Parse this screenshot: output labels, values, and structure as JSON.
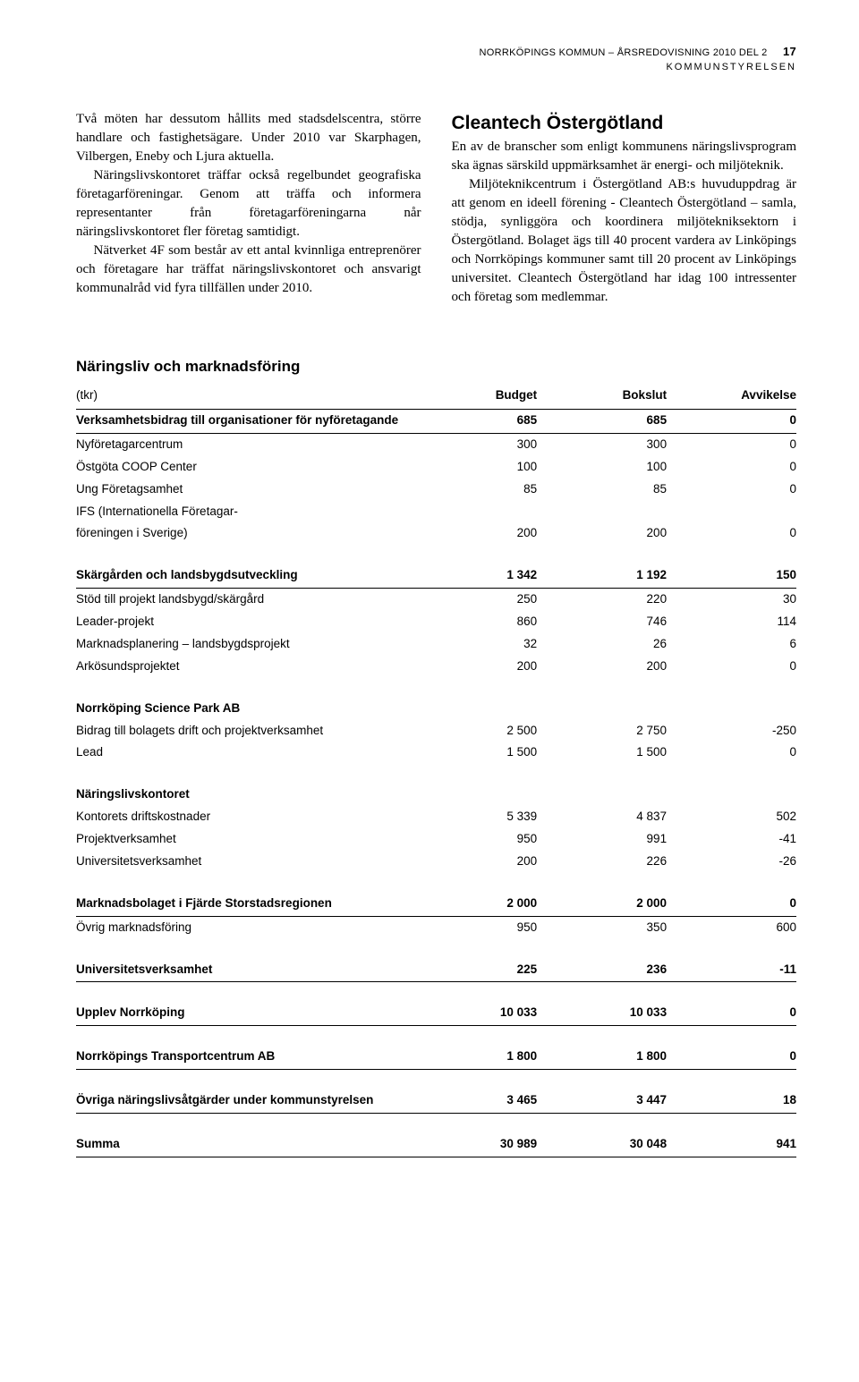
{
  "header": {
    "line1": "NORRKÖPINGS KOMMUN – ÅRSREDOVISNING 2010 DEL 2",
    "pagenum": "17",
    "line2": "KOMMUNSTYRELSEN"
  },
  "leftCol": {
    "p1": "Två möten har dessutom hållits med stadsdelscentra, större handlare och fastighetsägare. Under 2010 var Skarphagen, Vilbergen, Eneby och Ljura aktuella.",
    "p2": "Näringslivskontoret träffar också regelbundet geografiska företagarföreningar. Genom att träffa och informera representanter från företagarföreningarna når näringslivskontoret fler företag samtidigt.",
    "p3": "Nätverket 4F som består av ett antal kvinnliga entreprenörer och företagare har träffat näringslivskontoret och ansvarigt kommunalråd vid fyra tillfällen under 2010."
  },
  "rightCol": {
    "h": "Cleantech Östergötland",
    "p1": "En av de branscher som enligt kommunens näringslivsprogram ska ägnas särskild uppmärksamhet är energi- och miljöteknik.",
    "p2": "Miljöteknikcentrum i Östergötland AB:s huvuduppdrag är att genom en ideell förening - Cleantech Östergötland – samla, stödja, synliggöra och koordinera miljötekniksektorn i Östergötland. Bolaget ägs till 40 procent vardera av Linköpings och Norrköpings kommuner samt till 20 procent av Linköpings universitet. Cleantech Östergötland har idag 100 intressenter och företag som medlemmar."
  },
  "tableTitle": "Näringsliv och marknadsföring",
  "table": {
    "head": {
      "c0": "(tkr)",
      "c1": "Budget",
      "c2": "Bokslut",
      "c3": "Avvikelse"
    },
    "rows": [
      {
        "type": "group",
        "underline": true,
        "label": "Verksamhetsbidrag till organisationer för nyföretagande",
        "v": [
          "685",
          "685",
          "0"
        ]
      },
      {
        "type": "item",
        "label": "Nyföretagarcentrum",
        "v": [
          "300",
          "300",
          "0"
        ]
      },
      {
        "type": "item",
        "label": "Östgöta COOP Center",
        "v": [
          "100",
          "100",
          "0"
        ]
      },
      {
        "type": "item",
        "label": "Ung Företagsamhet",
        "v": [
          "85",
          "85",
          "0"
        ]
      },
      {
        "type": "itemlbl",
        "label": "IFS (Internationella Företagar-"
      },
      {
        "type": "item",
        "label": "föreningen i Sverige)",
        "v": [
          "200",
          "200",
          "0"
        ]
      },
      {
        "type": "group",
        "spaced": true,
        "underline": true,
        "label": "Skärgården och landsbygdsutveckling",
        "v": [
          "1 342",
          "1 192",
          "150"
        ]
      },
      {
        "type": "item",
        "label": "Stöd till projekt landsbygd/skärgård",
        "v": [
          "250",
          "220",
          "30"
        ]
      },
      {
        "type": "item",
        "label": "Leader-projekt",
        "v": [
          "860",
          "746",
          "114"
        ]
      },
      {
        "type": "item",
        "label": "Marknadsplanering – landsbygdsprojekt",
        "v": [
          "32",
          "26",
          "6"
        ]
      },
      {
        "type": "item",
        "label": "Arkösundsprojektet",
        "v": [
          "200",
          "200",
          "0"
        ]
      },
      {
        "type": "grouplbl",
        "spaced": true,
        "label": "Norrköping Science Park AB"
      },
      {
        "type": "item",
        "label": "Bidrag till bolagets drift och projektverksamhet",
        "v": [
          "2 500",
          "2 750",
          "-250"
        ]
      },
      {
        "type": "item",
        "label": "Lead",
        "v": [
          "1 500",
          "1 500",
          "0"
        ]
      },
      {
        "type": "grouplbl",
        "spaced": true,
        "label": "Näringslivskontoret"
      },
      {
        "type": "item",
        "label": "Kontorets driftskostnader",
        "v": [
          "5 339",
          "4 837",
          "502"
        ]
      },
      {
        "type": "item",
        "label": "Projektverksamhet",
        "v": [
          "950",
          "991",
          "-41"
        ]
      },
      {
        "type": "item",
        "label": "Universitetsverksamhet",
        "v": [
          "200",
          "226",
          "-26"
        ]
      },
      {
        "type": "group",
        "spaced": true,
        "underline": true,
        "label": "Marknadsbolaget i Fjärde Storstadsregionen",
        "v": [
          "2 000",
          "2 000",
          "0"
        ]
      },
      {
        "type": "item",
        "label": "Övrig marknadsföring",
        "v": [
          "950",
          "350",
          "600"
        ]
      },
      {
        "type": "group",
        "spaced": true,
        "underline": true,
        "label": "Universitetsverksamhet",
        "v": [
          "225",
          "236",
          "-11"
        ]
      },
      {
        "type": "group",
        "spaced": true,
        "underline": true,
        "label": "Upplev Norrköping",
        "v": [
          "10 033",
          "10 033",
          "0"
        ]
      },
      {
        "type": "group",
        "spaced": true,
        "underline": true,
        "label": "Norrköpings Transportcentrum AB",
        "v": [
          "1 800",
          "1 800",
          "0"
        ]
      },
      {
        "type": "group",
        "spaced": true,
        "underline": true,
        "label": "Övriga näringslivsåtgärder under kommunstyrelsen",
        "v": [
          "3 465",
          "3 447",
          "18"
        ]
      },
      {
        "type": "sum",
        "label": "Summa",
        "v": [
          "30 989",
          "30 048",
          "941"
        ]
      }
    ]
  }
}
